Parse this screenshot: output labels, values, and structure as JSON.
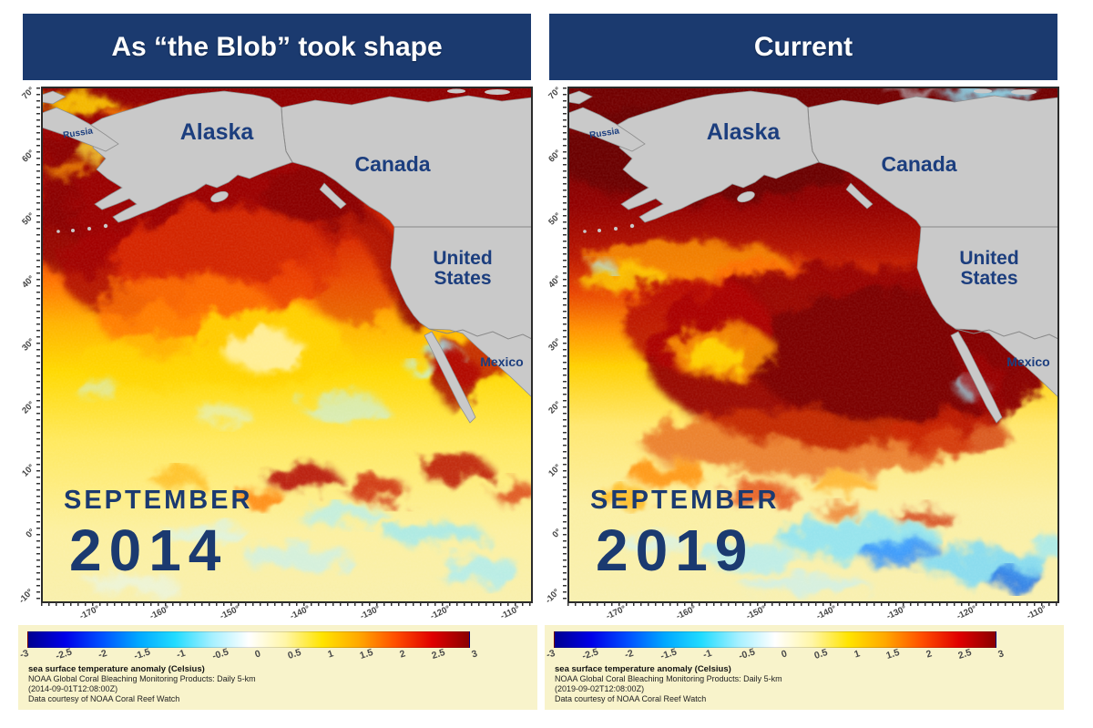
{
  "page": {
    "background": "#ffffff"
  },
  "colors": {
    "title_bar": "#1b3a6f",
    "title_text": "#ffffff",
    "map_label_navy": "#1c3e7e",
    "land_gray": "#c9c9c9",
    "legend_background": "#f8f3cb"
  },
  "panels": [
    {
      "title": "As “the Blob” took shape",
      "month": "SEPTEMBER",
      "year": "2014",
      "timestamp": "(2014-09-01T12:08:00Z)"
    },
    {
      "title": "Current",
      "month": "SEPTEMBER",
      "year": "2019",
      "timestamp": "(2019-09-02T12:08:00Z)"
    }
  ],
  "map": {
    "labels": {
      "russia": "Russia",
      "alaska": "Alaska",
      "canada": "Canada",
      "united_states_line1": "United",
      "united_states_line2": "States",
      "mexico": "Mexico"
    },
    "lat_ticks": [
      "70°",
      "60°",
      "50°",
      "40°",
      "30°",
      "20°",
      "10°",
      "0°",
      "-10°"
    ],
    "lon_ticks": [
      "-170°",
      "-160°",
      "-150°",
      "-140°",
      "-130°",
      "-120°",
      "-110°"
    ]
  },
  "colorbar": {
    "caption_title": "sea surface temperature anomaly (Celsius)",
    "caption_product": "NOAA Global Coral Bleaching Monitoring Products: Daily 5-km",
    "caption_courtesy": "Data courtesy of NOAA Coral Reef Watch",
    "unit": "Celsius",
    "range_min": -3,
    "range_max": 3,
    "ticks": [
      "-3",
      "-2.5",
      "-2",
      "-1.5",
      "-1",
      "-0.5",
      "0",
      "0.5",
      "1",
      "1.5",
      "2",
      "2.5",
      "3"
    ],
    "gradient_stops": [
      "#000090",
      "#0000e8",
      "#0050ff",
      "#00a8ff",
      "#22dcff",
      "#a5f0ff",
      "#ffffff",
      "#fff6a8",
      "#ffe400",
      "#ffa800",
      "#ff4e00",
      "#e00000",
      "#8b0000"
    ]
  }
}
